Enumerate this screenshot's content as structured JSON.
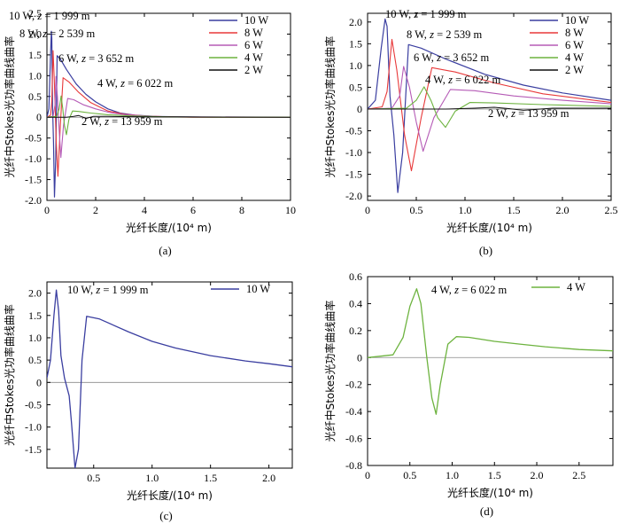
{
  "chart_data": [
    {
      "panel": "(a)",
      "type": "line",
      "xlabel": "光纤长度/(10⁴ m)",
      "ylabel": "光纤中Stokes光功率曲线曲率",
      "xlim": [
        0,
        10
      ],
      "ylim": [
        -2.0,
        2.5
      ],
      "xticks": [
        0,
        2,
        4,
        6,
        8,
        10
      ],
      "yticks": [
        -2.0,
        -1.5,
        -1.0,
        -0.5,
        0,
        0.5,
        1.0,
        1.5,
        2.0,
        2.5
      ],
      "legend": "top-right",
      "series": [
        {
          "name": "10 W",
          "color": "#3a3ea0",
          "width": 1.2,
          "x": [
            0,
            0.08,
            0.14,
            0.18,
            0.2,
            0.23,
            0.27,
            0.31,
            0.36,
            0.42,
            0.55,
            0.8,
            1.2,
            1.6,
            2.0,
            2.5,
            3.0,
            3.6,
            4.5,
            6.0,
            6.7,
            10
          ],
          "y": [
            0,
            0.2,
            1.4,
            2.07,
            1.9,
            0.3,
            -0.6,
            -1.92,
            -1.0,
            1.48,
            1.4,
            1.15,
            0.8,
            0.55,
            0.37,
            0.2,
            0.1,
            0.05,
            0.02,
            0.005,
            0.0,
            0.0
          ]
        },
        {
          "name": "8 W",
          "color": "#e8393a",
          "width": 1.1,
          "x": [
            0,
            0.15,
            0.2,
            0.25,
            0.3,
            0.38,
            0.45,
            0.55,
            0.66,
            0.9,
            1.3,
            1.8,
            2.5,
            3.2,
            4.0,
            5.0,
            6.0,
            10
          ],
          "y": [
            0,
            0.05,
            0.4,
            1.6,
            0.9,
            -0.6,
            -1.42,
            -0.2,
            0.95,
            0.85,
            0.6,
            0.35,
            0.15,
            0.07,
            0.03,
            0.01,
            0.0,
            0.0
          ]
        },
        {
          "name": "6 W",
          "color": "#b55bb6",
          "width": 1.1,
          "x": [
            0,
            0.25,
            0.33,
            0.37,
            0.43,
            0.5,
            0.57,
            0.68,
            0.85,
            1.1,
            1.5,
            2.0,
            2.6,
            3.2,
            4.0,
            5.0,
            10
          ],
          "y": [
            0,
            0.02,
            0.3,
            0.98,
            0.5,
            -0.3,
            -0.97,
            -0.2,
            0.45,
            0.42,
            0.3,
            0.2,
            0.11,
            0.06,
            0.03,
            0.01,
            0.0
          ]
        },
        {
          "name": "4 W",
          "color": "#6db33f",
          "width": 1.1,
          "x": [
            0,
            0.4,
            0.5,
            0.58,
            0.65,
            0.72,
            0.8,
            0.9,
            1.05,
            1.3,
            1.8,
            2.5,
            3.5,
            5.0,
            7.0,
            10
          ],
          "y": [
            0,
            0.02,
            0.2,
            0.51,
            0.2,
            -0.2,
            -0.42,
            -0.05,
            0.15,
            0.14,
            0.1,
            0.06,
            0.03,
            0.01,
            0.0,
            0.0
          ]
        },
        {
          "name": "2 W",
          "color": "#111111",
          "width": 1.0,
          "x": [
            0,
            0.8,
            1.1,
            1.3,
            1.45,
            1.6,
            1.9,
            2.5,
            4.0,
            10
          ],
          "y": [
            0,
            0.0,
            0.02,
            0.04,
            0.01,
            -0.03,
            0.02,
            0.02,
            0.01,
            0.0
          ]
        }
      ],
      "annotations": [
        {
          "label": "10 W, ",
          "z": "z",
          "value": " = 1 999 m"
        },
        {
          "label": "8 W, ",
          "z": "z",
          "value": " = 2 539 m"
        },
        {
          "label": "6 W, ",
          "z": "z",
          "value": " = 3 652 m"
        },
        {
          "label": "4 W, ",
          "z": "z",
          "value": " = 6 022 m"
        },
        {
          "label": "2 W, ",
          "z": "z",
          "value": " = 13 959 m"
        }
      ],
      "caption": "(a)"
    },
    {
      "panel": "(b)",
      "type": "line",
      "xlabel": "光纤长度/(10⁴ m)",
      "ylabel": "光纤中Stokes光功率曲线曲率",
      "xlim": [
        0,
        2.5
      ],
      "ylim": [
        -2.1,
        2.2
      ],
      "xticks": [
        0,
        0.5,
        1.0,
        1.5,
        2.0,
        2.5
      ],
      "yticks": [
        -2.0,
        -1.5,
        -1.0,
        -0.5,
        0,
        0.5,
        1.0,
        1.5,
        2.0
      ],
      "legend": "top-right",
      "series": [
        {
          "name": "10 W",
          "color": "#3a3ea0",
          "width": 1.2,
          "x": [
            0,
            0.08,
            0.14,
            0.18,
            0.2,
            0.23,
            0.27,
            0.31,
            0.36,
            0.42,
            0.55,
            0.8,
            1.2,
            1.6,
            2.0,
            2.5
          ],
          "y": [
            0,
            0.2,
            1.4,
            2.07,
            1.9,
            0.3,
            -0.6,
            -1.92,
            -1.0,
            1.48,
            1.4,
            1.15,
            0.8,
            0.55,
            0.37,
            0.2
          ]
        },
        {
          "name": "8 W",
          "color": "#e8393a",
          "width": 1.1,
          "x": [
            0,
            0.15,
            0.2,
            0.25,
            0.3,
            0.38,
            0.45,
            0.55,
            0.66,
            0.9,
            1.3,
            1.8,
            2.5
          ],
          "y": [
            0,
            0.05,
            0.4,
            1.6,
            0.9,
            -0.6,
            -1.42,
            -0.2,
            0.95,
            0.85,
            0.6,
            0.35,
            0.15
          ]
        },
        {
          "name": "6 W",
          "color": "#b55bb6",
          "width": 1.1,
          "x": [
            0,
            0.25,
            0.33,
            0.37,
            0.43,
            0.5,
            0.57,
            0.68,
            0.85,
            1.1,
            1.5,
            2.0,
            2.5
          ],
          "y": [
            0,
            0.02,
            0.3,
            0.98,
            0.5,
            -0.3,
            -0.97,
            -0.2,
            0.45,
            0.42,
            0.3,
            0.2,
            0.12
          ]
        },
        {
          "name": "4 W",
          "color": "#6db33f",
          "width": 1.1,
          "x": [
            0,
            0.4,
            0.5,
            0.58,
            0.65,
            0.72,
            0.8,
            0.9,
            1.05,
            1.3,
            1.8,
            2.5
          ],
          "y": [
            0,
            0.02,
            0.2,
            0.51,
            0.2,
            -0.2,
            -0.42,
            -0.05,
            0.15,
            0.14,
            0.1,
            0.06
          ]
        },
        {
          "name": "2 W",
          "color": "#111111",
          "width": 1.0,
          "x": [
            0,
            0.8,
            1.1,
            1.3,
            1.45,
            1.6,
            1.9,
            2.5
          ],
          "y": [
            0,
            0.0,
            0.02,
            0.04,
            0.01,
            -0.03,
            0.02,
            0.02
          ]
        }
      ],
      "annotations": [
        {
          "label": "10 W, ",
          "z": "z",
          "value": " = 1 999 m"
        },
        {
          "label": "8 W, ",
          "z": "z",
          "value": " = 2 539 m"
        },
        {
          "label": "6 W, ",
          "z": "z",
          "value": " = 3 652 m"
        },
        {
          "label": "4 W, ",
          "z": "z",
          "value": " = 6 022 m"
        },
        {
          "label": "2 W, ",
          "z": "z",
          "value": " = 13 959 m"
        }
      ],
      "caption": "(b)"
    },
    {
      "panel": "(c)",
      "type": "line",
      "xlabel": "光纤长度/(10⁴ m)",
      "ylabel": "光纤中Stokes光功率曲线曲率",
      "xlim": [
        0.1,
        2.2
      ],
      "ylim": [
        -1.92,
        2.25
      ],
      "xticks": [
        0.5,
        1.0,
        1.5,
        2.0
      ],
      "yticks": [
        -1.5,
        -1.0,
        -0.5,
        0,
        0.5,
        1.0,
        1.5,
        2.0
      ],
      "legend": "top-right",
      "series": [
        {
          "name": "10 W",
          "color": "#3a3ea0",
          "width": 1.3,
          "x": [
            0.1,
            0.13,
            0.16,
            0.18,
            0.2,
            0.22,
            0.25,
            0.29,
            0.31,
            0.34,
            0.37,
            0.4,
            0.44,
            0.55,
            0.8,
            1.0,
            1.2,
            1.5,
            1.8,
            2.0,
            2.2
          ],
          "y": [
            0.1,
            0.5,
            1.5,
            2.07,
            1.6,
            0.6,
            0.1,
            -0.3,
            -0.9,
            -1.92,
            -1.5,
            0.5,
            1.48,
            1.42,
            1.13,
            0.92,
            0.77,
            0.6,
            0.48,
            0.42,
            0.35
          ]
        }
      ],
      "annotations": [
        {
          "label": "10 W, ",
          "z": "z",
          "value": " = 1 999 m"
        }
      ],
      "caption": "(c)"
    },
    {
      "panel": "(d)",
      "type": "line",
      "xlabel": "光纤长度/(10⁴ m)",
      "ylabel": "光纤中Stokes光功率曲线曲率",
      "xlim": [
        0,
        2.9
      ],
      "ylim": [
        -0.8,
        0.6
      ],
      "xticks": [
        0,
        0.5,
        1.0,
        1.5,
        2.0,
        2.5
      ],
      "yticks": [
        -0.8,
        -0.6,
        -0.4,
        -0.2,
        0,
        0.2,
        0.4,
        0.6
      ],
      "legend": "top-right",
      "series": [
        {
          "name": "4 W",
          "color": "#6db33f",
          "width": 1.3,
          "x": [
            0,
            0.3,
            0.42,
            0.5,
            0.58,
            0.63,
            0.7,
            0.76,
            0.81,
            0.86,
            0.95,
            1.05,
            1.2,
            1.5,
            1.8,
            2.1,
            2.5,
            2.9
          ],
          "y": [
            0.0,
            0.02,
            0.15,
            0.38,
            0.51,
            0.4,
            0.0,
            -0.3,
            -0.42,
            -0.2,
            0.1,
            0.155,
            0.15,
            0.12,
            0.1,
            0.08,
            0.06,
            0.05
          ]
        }
      ],
      "annotations": [
        {
          "label": "4 W, ",
          "z": "z",
          "value": " = 6 022 m"
        }
      ],
      "caption": "(d)"
    }
  ]
}
